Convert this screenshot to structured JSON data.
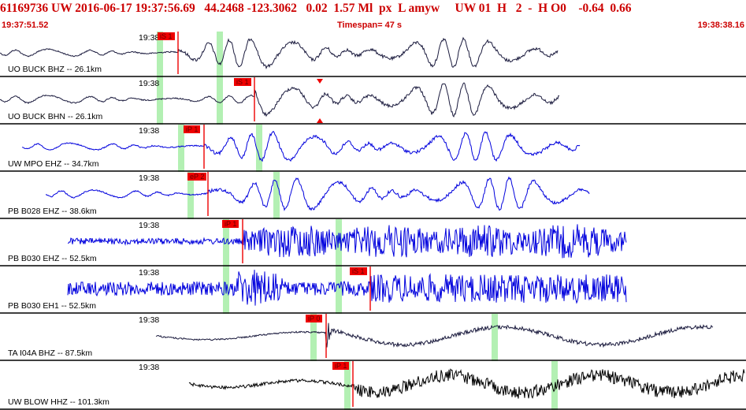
{
  "header": {
    "title": "61169736 UW 2016-06-17 19:37:56.69   44.2468 -123.3062   0.02  1.57 Ml  px  L amyw     UW 01  H   2  -  H O0    -0.64  0.66",
    "start_time": "19:37:51.52",
    "timespan": "Timespan=  47 s",
    "end_time": "19:38:38.16"
  },
  "colors": {
    "title": "#cc0000",
    "pick": "#ee0000",
    "window": "#b3f0b3",
    "trace_dark": "#1a1a3d",
    "trace_blue": "#0000dd"
  },
  "channels": [
    {
      "label": "UO BUCK BHZ -- 26.1km",
      "time_tick": "19:38",
      "pick": "iS 1",
      "color": "#1a1a3d",
      "style": "wave"
    },
    {
      "label": "UO BUCK BHN -- 26.1km",
      "time_tick": "19:38",
      "pick": "iS 1",
      "color": "#1a1a3d",
      "style": "wave"
    },
    {
      "label": "UW MPO EHZ -- 34.7km",
      "time_tick": "19:38",
      "pick": "iP 1",
      "color": "#0000dd",
      "style": "wave"
    },
    {
      "label": "PB B028 EHZ -- 38.6km",
      "time_tick": "19:38",
      "pick": "eP 2",
      "color": "#0000dd",
      "style": "wave"
    },
    {
      "label": "PB B030 EHZ -- 52.5km",
      "time_tick": "19:38",
      "pick": "iP 1",
      "color": "#0000dd",
      "style": "noisy"
    },
    {
      "label": "PB B030 EH1 -- 52.5km",
      "time_tick": "19:38",
      "pick": "iS 1",
      "color": "#0000dd",
      "style": "burst"
    },
    {
      "label": "TA I04A BHZ -- 87.5km",
      "time_tick": "19:38",
      "pick": "iP 0",
      "color": "#1a1a3d",
      "style": "slow"
    },
    {
      "label": "UW BLOW HHZ -- 101.3km",
      "time_tick": "19:38",
      "pick": "iP 1",
      "color": "#000000",
      "style": "noisyblack"
    }
  ]
}
